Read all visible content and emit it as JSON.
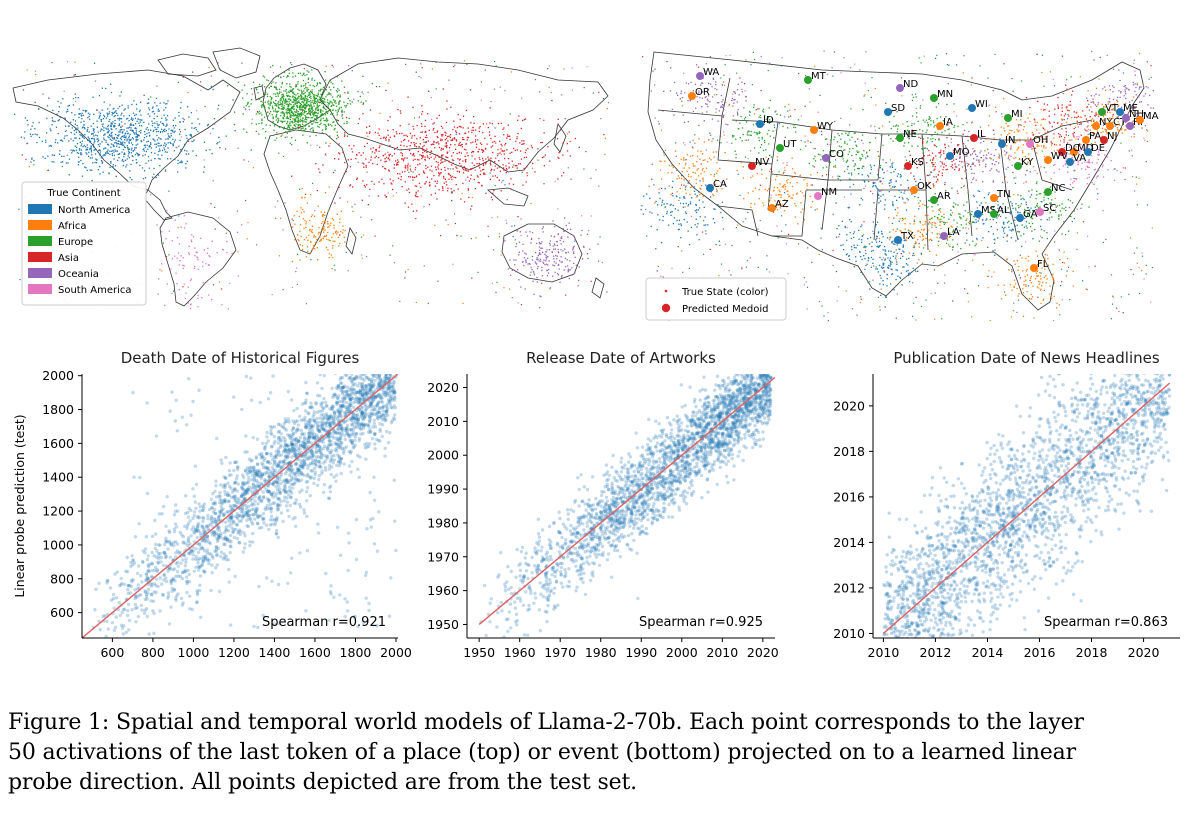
{
  "maps": {
    "world": {
      "legend_title": "True Continent",
      "legend": [
        {
          "label": "North America",
          "color": "#1f77b4"
        },
        {
          "label": "Africa",
          "color": "#ff7f0e"
        },
        {
          "label": "Europe",
          "color": "#2ca02c"
        },
        {
          "label": "Asia",
          "color": "#d62728"
        },
        {
          "label": "Oceania",
          "color": "#9467bd"
        },
        {
          "label": "South America",
          "color": "#e377c2"
        }
      ]
    },
    "usa": {
      "legend": [
        {
          "label": "True State (color)",
          "marker": "small-dot",
          "color": "#d62728"
        },
        {
          "label": "Predicted Medoid",
          "marker": "large-dot",
          "color": "#d62728"
        }
      ],
      "state_labels": [
        "WA",
        "OR",
        "MT",
        "ND",
        "MN",
        "SD",
        "WI",
        "ID",
        "WY",
        "IA",
        "MI",
        "NE",
        "UT",
        "CO",
        "IL",
        "NV",
        "KS",
        "MO",
        "IN",
        "OH",
        "PA",
        "NY",
        "VT",
        "ME",
        "CT",
        "NH",
        "RI",
        "MA",
        "NJ",
        "MD",
        "DE",
        "DC",
        "WV",
        "VA",
        "KY",
        "CA",
        "AZ",
        "NM",
        "OK",
        "AR",
        "TN",
        "NC",
        "SC",
        "MS",
        "AL",
        "GA",
        "TX",
        "LA",
        "FL"
      ]
    }
  },
  "chart_data": [
    {
      "type": "scatter",
      "title": "Death Date of Historical Figures",
      "xlabel": "",
      "ylabel": "Linear probe prediction (test)",
      "xlim": [
        450,
        2010
      ],
      "ylim": [
        450,
        2010
      ],
      "xticks": [
        600,
        800,
        1000,
        1200,
        1400,
        1600,
        1800,
        2000
      ],
      "yticks": [
        600,
        800,
        1000,
        1200,
        1400,
        1600,
        1800,
        2000
      ],
      "color": "#1f77b4",
      "reference_line": {
        "from": [
          450,
          450
        ],
        "to": [
          2010,
          2010
        ],
        "color": "#e06060"
      },
      "annotation": "Spearman r=0.921",
      "spearman_r": 0.921
    },
    {
      "type": "scatter",
      "title": "Release Date of Artworks",
      "xlabel": "",
      "ylabel": "",
      "xlim": [
        1947,
        2023
      ],
      "ylim": [
        1946,
        2024
      ],
      "xticks": [
        1950,
        1960,
        1970,
        1980,
        1990,
        2000,
        2010,
        2020
      ],
      "yticks": [
        1950,
        1960,
        1970,
        1980,
        1990,
        2000,
        2010,
        2020
      ],
      "color": "#1f77b4",
      "reference_line": {
        "from": [
          1950,
          1950
        ],
        "to": [
          2023,
          2023
        ],
        "color": "#e06060"
      },
      "annotation": "Spearman r=0.925",
      "spearman_r": 0.925
    },
    {
      "type": "scatter",
      "title": "Publication Date of News Headlines",
      "xlabel": "",
      "ylabel": "",
      "xlim": [
        2009.6,
        2021.4
      ],
      "ylim": [
        2009.8,
        2021.4
      ],
      "xticks": [
        2010,
        2012,
        2014,
        2016,
        2018,
        2020
      ],
      "yticks": [
        2010,
        2012,
        2014,
        2016,
        2018,
        2020
      ],
      "color": "#1f77b4",
      "reference_line": {
        "from": [
          2010,
          2010
        ],
        "to": [
          2021,
          2021
        ],
        "color": "#e06060"
      },
      "annotation": "Spearman r=0.863",
      "spearman_r": 0.863
    }
  ],
  "caption": {
    "lines": [
      "Figure 1: Spatial and temporal world models of Llama-2-70b. Each point corresponds to the layer",
      "50 activations of the last token of a place (top) or event (bottom) projected on to a learned linear",
      "probe direction. All points depicted are from the test set."
    ]
  }
}
